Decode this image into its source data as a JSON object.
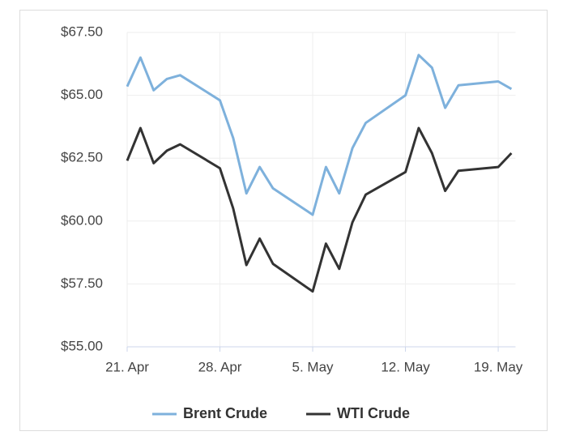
{
  "chart_data": {
    "type": "line",
    "x": [
      "21. Apr",
      "22. Apr",
      "23. Apr",
      "24. Apr",
      "25. Apr",
      "28. Apr",
      "29. Apr",
      "30. Apr",
      "1. May",
      "2. May",
      "5. May",
      "6. May",
      "7. May",
      "8. May",
      "9. May",
      "12. May",
      "13. May",
      "14. May",
      "15. May",
      "16. May",
      "19. May",
      "20. May"
    ],
    "series": [
      {
        "name": "Brent Crude",
        "color": "#7eb1dc",
        "values": [
          65.35,
          66.5,
          65.2,
          65.65,
          65.8,
          64.8,
          63.3,
          61.1,
          62.15,
          61.3,
          60.25,
          62.15,
          61.1,
          62.9,
          63.9,
          65.0,
          66.6,
          66.1,
          64.5,
          65.4,
          65.55,
          65.25
        ]
      },
      {
        "name": "WTI Crude",
        "color": "#333333",
        "values": [
          62.4,
          63.7,
          62.3,
          62.8,
          63.05,
          62.1,
          60.5,
          58.25,
          59.3,
          58.3,
          57.2,
          59.1,
          58.1,
          59.95,
          61.05,
          61.95,
          63.7,
          62.7,
          61.2,
          62.0,
          62.15,
          62.7
        ]
      }
    ],
    "xlim": [
      "21. Apr",
      "20. May"
    ],
    "xticks": [
      "21. Apr",
      "28. Apr",
      "5. May",
      "12. May",
      "19. May"
    ],
    "ylim": [
      55,
      67.5
    ],
    "yticks": [
      {
        "value": 55,
        "label": "$55.00"
      },
      {
        "value": 57.5,
        "label": "$57.50"
      },
      {
        "value": 60,
        "label": "$60.00"
      },
      {
        "value": 62.5,
        "label": "$62.50"
      },
      {
        "value": 65,
        "label": "$65.00"
      },
      {
        "value": 67.5,
        "label": "$67.50"
      }
    ],
    "grid": true,
    "legend": "bottom"
  }
}
